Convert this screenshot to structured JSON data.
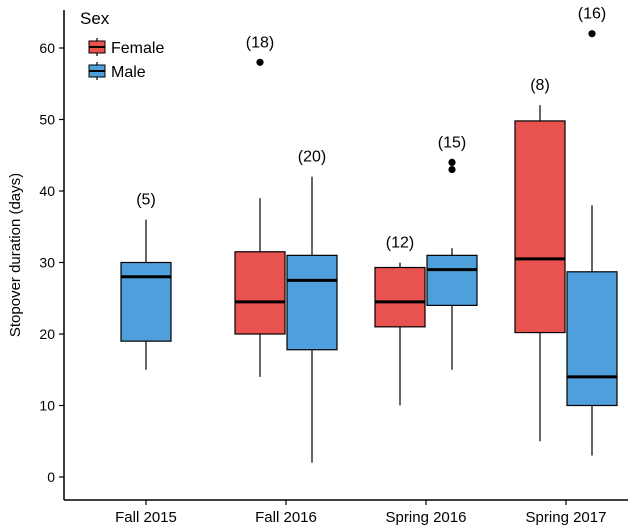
{
  "chart_data": {
    "type": "box",
    "ylabel": "Stopover duration (days)",
    "xlabel": "",
    "ylim": [
      -2,
      66
    ],
    "yticks": [
      0,
      10,
      20,
      30,
      40,
      50,
      60
    ],
    "grid": false,
    "legend": {
      "title": "Sex",
      "placement": "top-left",
      "entries": [
        {
          "name": "Female",
          "color": "#e8524f"
        },
        {
          "name": "Male",
          "color": "#4e9fdc"
        }
      ]
    },
    "categories": [
      "Fall 2015",
      "Fall 2016",
      "Spring 2016",
      "Spring 2017"
    ],
    "series": [
      {
        "name": "Female",
        "color": "#e8524f",
        "boxes": [
          null,
          {
            "whisker_low": 14,
            "q1": 20,
            "median": 24.5,
            "q3": 31.5,
            "whisker_high": 39,
            "outliers": [
              58
            ],
            "n_label": "(18)"
          },
          {
            "whisker_low": 10,
            "q1": 21,
            "median": 24.5,
            "q3": 29.3,
            "whisker_high": 30,
            "outliers": [],
            "n_label": "(12)"
          },
          {
            "whisker_low": 5,
            "q1": 20.2,
            "median": 30.5,
            "q3": 49.8,
            "whisker_high": 52,
            "outliers": [],
            "n_label": "(8)"
          }
        ]
      },
      {
        "name": "Male",
        "color": "#4e9fdc",
        "boxes": [
          {
            "whisker_low": 15,
            "q1": 19,
            "median": 28,
            "q3": 30,
            "whisker_high": 36,
            "outliers": [],
            "n_label": "(5)"
          },
          {
            "whisker_low": 2,
            "q1": 17.8,
            "median": 27.5,
            "q3": 31,
            "whisker_high": 42,
            "outliers": [],
            "n_label": "(20)"
          },
          {
            "whisker_low": 15,
            "q1": 24,
            "median": 29,
            "q3": 31,
            "whisker_high": 32,
            "outliers": [
              43,
              44
            ],
            "n_label": "(15)"
          },
          {
            "whisker_low": 3,
            "q1": 10,
            "median": 14,
            "q3": 28.7,
            "whisker_high": 38,
            "outliers": [
              62
            ],
            "n_label": "(16)"
          }
        ]
      }
    ]
  }
}
